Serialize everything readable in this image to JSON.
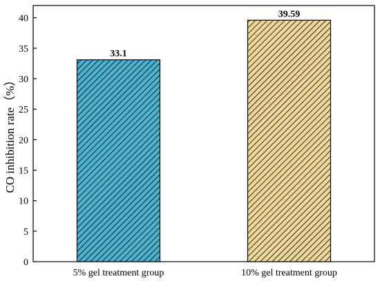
{
  "chart_data": {
    "type": "bar",
    "title": "",
    "xlabel": "",
    "ylabel": "CO inhibition rate（%）",
    "categories": [
      "5% gel treatment group",
      "10% gel treatment group"
    ],
    "values": [
      33.1,
      39.59
    ],
    "data_labels": [
      "33.1",
      "39.59"
    ],
    "ylim": [
      0,
      42
    ],
    "yticks": [
      0,
      5,
      10,
      15,
      20,
      25,
      30,
      35,
      40
    ],
    "grid": false,
    "legend": "none",
    "colors": [
      "#4bb3cf",
      "#f0d79a"
    ],
    "pattern": "diagonal-hatch"
  }
}
